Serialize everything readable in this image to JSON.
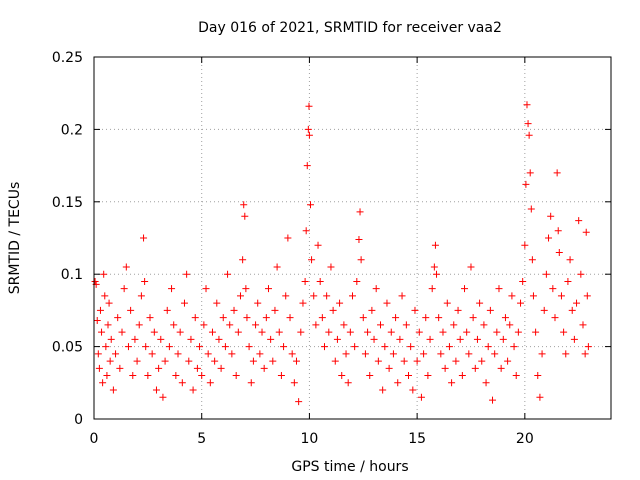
{
  "chart_data": {
    "type": "scatter",
    "title": "Day 016 of 2021, SRMTID for receiver vaa2",
    "xlabel": "GPS time / hours",
    "ylabel": "SRMTID / TECUs",
    "xlim": [
      0,
      24
    ],
    "ylim": [
      0,
      0.25
    ],
    "xticks": [
      0,
      5,
      10,
      15,
      20
    ],
    "xtick_labels": [
      "0",
      "5",
      "10",
      "15",
      "20"
    ],
    "yticks": [
      0,
      0.05,
      0.1,
      0.15,
      0.2,
      0.25
    ],
    "ytick_labels": [
      "0",
      "0.05",
      "0.1",
      "0.15",
      "0.2",
      "0.25"
    ],
    "grid": true,
    "marker": "+",
    "color": "#ff0000",
    "series": [
      {
        "name": "SRMTID",
        "points": [
          [
            0.05,
            0.095
          ],
          [
            0.1,
            0.093
          ],
          [
            0.15,
            0.068
          ],
          [
            0.2,
            0.045
          ],
          [
            0.25,
            0.035
          ],
          [
            0.3,
            0.075
          ],
          [
            0.35,
            0.06
          ],
          [
            0.4,
            0.025
          ],
          [
            0.45,
            0.1
          ],
          [
            0.5,
            0.085
          ],
          [
            0.55,
            0.05
          ],
          [
            0.6,
            0.03
          ],
          [
            0.65,
            0.065
          ],
          [
            0.7,
            0.08
          ],
          [
            0.75,
            0.04
          ],
          [
            0.8,
            0.055
          ],
          [
            0.9,
            0.02
          ],
          [
            1.0,
            0.045
          ],
          [
            1.1,
            0.07
          ],
          [
            1.2,
            0.035
          ],
          [
            1.3,
            0.06
          ],
          [
            1.4,
            0.09
          ],
          [
            1.5,
            0.105
          ],
          [
            1.6,
            0.05
          ],
          [
            1.7,
            0.075
          ],
          [
            1.8,
            0.03
          ],
          [
            1.9,
            0.055
          ],
          [
            2.0,
            0.04
          ],
          [
            2.1,
            0.065
          ],
          [
            2.2,
            0.085
          ],
          [
            2.3,
            0.125
          ],
          [
            2.35,
            0.095
          ],
          [
            2.4,
            0.05
          ],
          [
            2.5,
            0.03
          ],
          [
            2.6,
            0.07
          ],
          [
            2.7,
            0.045
          ],
          [
            2.8,
            0.06
          ],
          [
            2.9,
            0.02
          ],
          [
            3.0,
            0.035
          ],
          [
            3.1,
            0.055
          ],
          [
            3.2,
            0.015
          ],
          [
            3.3,
            0.04
          ],
          [
            3.4,
            0.075
          ],
          [
            3.5,
            0.05
          ],
          [
            3.6,
            0.09
          ],
          [
            3.7,
            0.065
          ],
          [
            3.8,
            0.03
          ],
          [
            3.9,
            0.045
          ],
          [
            4.0,
            0.06
          ],
          [
            4.1,
            0.025
          ],
          [
            4.2,
            0.08
          ],
          [
            4.3,
            0.1
          ],
          [
            4.4,
            0.04
          ],
          [
            4.5,
            0.055
          ],
          [
            4.6,
            0.02
          ],
          [
            4.7,
            0.07
          ],
          [
            4.8,
            0.035
          ],
          [
            4.9,
            0.05
          ],
          [
            5.0,
            0.03
          ],
          [
            5.1,
            0.065
          ],
          [
            5.2,
            0.09
          ],
          [
            5.3,
            0.045
          ],
          [
            5.4,
            0.025
          ],
          [
            5.5,
            0.06
          ],
          [
            5.6,
            0.04
          ],
          [
            5.7,
            0.08
          ],
          [
            5.8,
            0.055
          ],
          [
            5.9,
            0.035
          ],
          [
            6.0,
            0.07
          ],
          [
            6.1,
            0.05
          ],
          [
            6.2,
            0.1
          ],
          [
            6.3,
            0.065
          ],
          [
            6.4,
            0.045
          ],
          [
            6.5,
            0.075
          ],
          [
            6.6,
            0.03
          ],
          [
            6.7,
            0.06
          ],
          [
            6.8,
            0.085
          ],
          [
            6.9,
            0.11
          ],
          [
            6.95,
            0.148
          ],
          [
            7.0,
            0.14
          ],
          [
            7.05,
            0.09
          ],
          [
            7.1,
            0.07
          ],
          [
            7.2,
            0.05
          ],
          [
            7.3,
            0.025
          ],
          [
            7.4,
            0.04
          ],
          [
            7.5,
            0.065
          ],
          [
            7.6,
            0.08
          ],
          [
            7.7,
            0.045
          ],
          [
            7.8,
            0.06
          ],
          [
            7.9,
            0.035
          ],
          [
            8.0,
            0.07
          ],
          [
            8.1,
            0.09
          ],
          [
            8.2,
            0.055
          ],
          [
            8.3,
            0.04
          ],
          [
            8.4,
            0.075
          ],
          [
            8.5,
            0.105
          ],
          [
            8.6,
            0.06
          ],
          [
            8.7,
            0.03
          ],
          [
            8.8,
            0.05
          ],
          [
            8.9,
            0.085
          ],
          [
            9.0,
            0.125
          ],
          [
            9.1,
            0.07
          ],
          [
            9.2,
            0.045
          ],
          [
            9.3,
            0.025
          ],
          [
            9.4,
            0.04
          ],
          [
            9.5,
            0.012
          ],
          [
            9.6,
            0.06
          ],
          [
            9.7,
            0.08
          ],
          [
            9.8,
            0.095
          ],
          [
            9.85,
            0.13
          ],
          [
            9.9,
            0.175
          ],
          [
            9.95,
            0.2
          ],
          [
            9.98,
            0.216
          ],
          [
            10.0,
            0.196
          ],
          [
            10.05,
            0.148
          ],
          [
            10.1,
            0.11
          ],
          [
            10.2,
            0.085
          ],
          [
            10.3,
            0.065
          ],
          [
            10.4,
            0.12
          ],
          [
            10.5,
            0.095
          ],
          [
            10.6,
            0.07
          ],
          [
            10.7,
            0.05
          ],
          [
            10.8,
            0.085
          ],
          [
            10.9,
            0.06
          ],
          [
            11.0,
            0.105
          ],
          [
            11.1,
            0.075
          ],
          [
            11.2,
            0.04
          ],
          [
            11.3,
            0.055
          ],
          [
            11.4,
            0.08
          ],
          [
            11.5,
            0.03
          ],
          [
            11.6,
            0.065
          ],
          [
            11.7,
            0.045
          ],
          [
            11.8,
            0.025
          ],
          [
            11.9,
            0.06
          ],
          [
            12.0,
            0.085
          ],
          [
            12.1,
            0.05
          ],
          [
            12.2,
            0.095
          ],
          [
            12.3,
            0.124
          ],
          [
            12.35,
            0.143
          ],
          [
            12.4,
            0.11
          ],
          [
            12.5,
            0.07
          ],
          [
            12.6,
            0.045
          ],
          [
            12.7,
            0.06
          ],
          [
            12.8,
            0.03
          ],
          [
            12.9,
            0.075
          ],
          [
            13.0,
            0.055
          ],
          [
            13.1,
            0.09
          ],
          [
            13.2,
            0.04
          ],
          [
            13.3,
            0.065
          ],
          [
            13.4,
            0.02
          ],
          [
            13.5,
            0.05
          ],
          [
            13.6,
            0.08
          ],
          [
            13.7,
            0.035
          ],
          [
            13.8,
            0.06
          ],
          [
            13.9,
            0.045
          ],
          [
            14.0,
            0.07
          ],
          [
            14.1,
            0.025
          ],
          [
            14.2,
            0.055
          ],
          [
            14.3,
            0.085
          ],
          [
            14.4,
            0.04
          ],
          [
            14.5,
            0.065
          ],
          [
            14.6,
            0.03
          ],
          [
            14.7,
            0.05
          ],
          [
            14.8,
            0.02
          ],
          [
            14.9,
            0.075
          ],
          [
            15.0,
            0.04
          ],
          [
            15.1,
            0.06
          ],
          [
            15.2,
            0.015
          ],
          [
            15.3,
            0.045
          ],
          [
            15.4,
            0.07
          ],
          [
            15.5,
            0.03
          ],
          [
            15.6,
            0.055
          ],
          [
            15.7,
            0.09
          ],
          [
            15.8,
            0.105
          ],
          [
            15.85,
            0.12
          ],
          [
            15.9,
            0.1
          ],
          [
            16.0,
            0.07
          ],
          [
            16.1,
            0.045
          ],
          [
            16.2,
            0.06
          ],
          [
            16.3,
            0.035
          ],
          [
            16.4,
            0.08
          ],
          [
            16.5,
            0.05
          ],
          [
            16.6,
            0.025
          ],
          [
            16.7,
            0.065
          ],
          [
            16.8,
            0.04
          ],
          [
            16.9,
            0.075
          ],
          [
            17.0,
            0.055
          ],
          [
            17.1,
            0.03
          ],
          [
            17.2,
            0.09
          ],
          [
            17.3,
            0.06
          ],
          [
            17.4,
            0.045
          ],
          [
            17.5,
            0.105
          ],
          [
            17.6,
            0.07
          ],
          [
            17.7,
            0.035
          ],
          [
            17.8,
            0.055
          ],
          [
            17.9,
            0.08
          ],
          [
            18.0,
            0.04
          ],
          [
            18.1,
            0.065
          ],
          [
            18.2,
            0.025
          ],
          [
            18.3,
            0.05
          ],
          [
            18.4,
            0.075
          ],
          [
            18.5,
            0.013
          ],
          [
            18.6,
            0.045
          ],
          [
            18.7,
            0.06
          ],
          [
            18.8,
            0.09
          ],
          [
            18.9,
            0.035
          ],
          [
            19.0,
            0.055
          ],
          [
            19.1,
            0.07
          ],
          [
            19.2,
            0.04
          ],
          [
            19.3,
            0.065
          ],
          [
            19.4,
            0.085
          ],
          [
            19.5,
            0.05
          ],
          [
            19.6,
            0.03
          ],
          [
            19.7,
            0.06
          ],
          [
            19.8,
            0.08
          ],
          [
            19.9,
            0.095
          ],
          [
            20.0,
            0.12
          ],
          [
            20.05,
            0.162
          ],
          [
            20.1,
            0.217
          ],
          [
            20.15,
            0.204
          ],
          [
            20.2,
            0.196
          ],
          [
            20.25,
            0.17
          ],
          [
            20.3,
            0.145
          ],
          [
            20.35,
            0.11
          ],
          [
            20.4,
            0.085
          ],
          [
            20.5,
            0.06
          ],
          [
            20.6,
            0.03
          ],
          [
            20.7,
            0.015
          ],
          [
            20.8,
            0.045
          ],
          [
            20.9,
            0.075
          ],
          [
            21.0,
            0.1
          ],
          [
            21.1,
            0.125
          ],
          [
            21.2,
            0.14
          ],
          [
            21.3,
            0.09
          ],
          [
            21.4,
            0.07
          ],
          [
            21.5,
            0.17
          ],
          [
            21.55,
            0.13
          ],
          [
            21.6,
            0.115
          ],
          [
            21.7,
            0.085
          ],
          [
            21.8,
            0.06
          ],
          [
            21.9,
            0.045
          ],
          [
            22.0,
            0.095
          ],
          [
            22.1,
            0.11
          ],
          [
            22.2,
            0.075
          ],
          [
            22.3,
            0.055
          ],
          [
            22.4,
            0.08
          ],
          [
            22.5,
            0.137
          ],
          [
            22.6,
            0.1
          ],
          [
            22.7,
            0.065
          ],
          [
            22.8,
            0.045
          ],
          [
            22.85,
            0.129
          ],
          [
            22.9,
            0.085
          ],
          [
            22.95,
            0.05
          ]
        ]
      }
    ]
  }
}
